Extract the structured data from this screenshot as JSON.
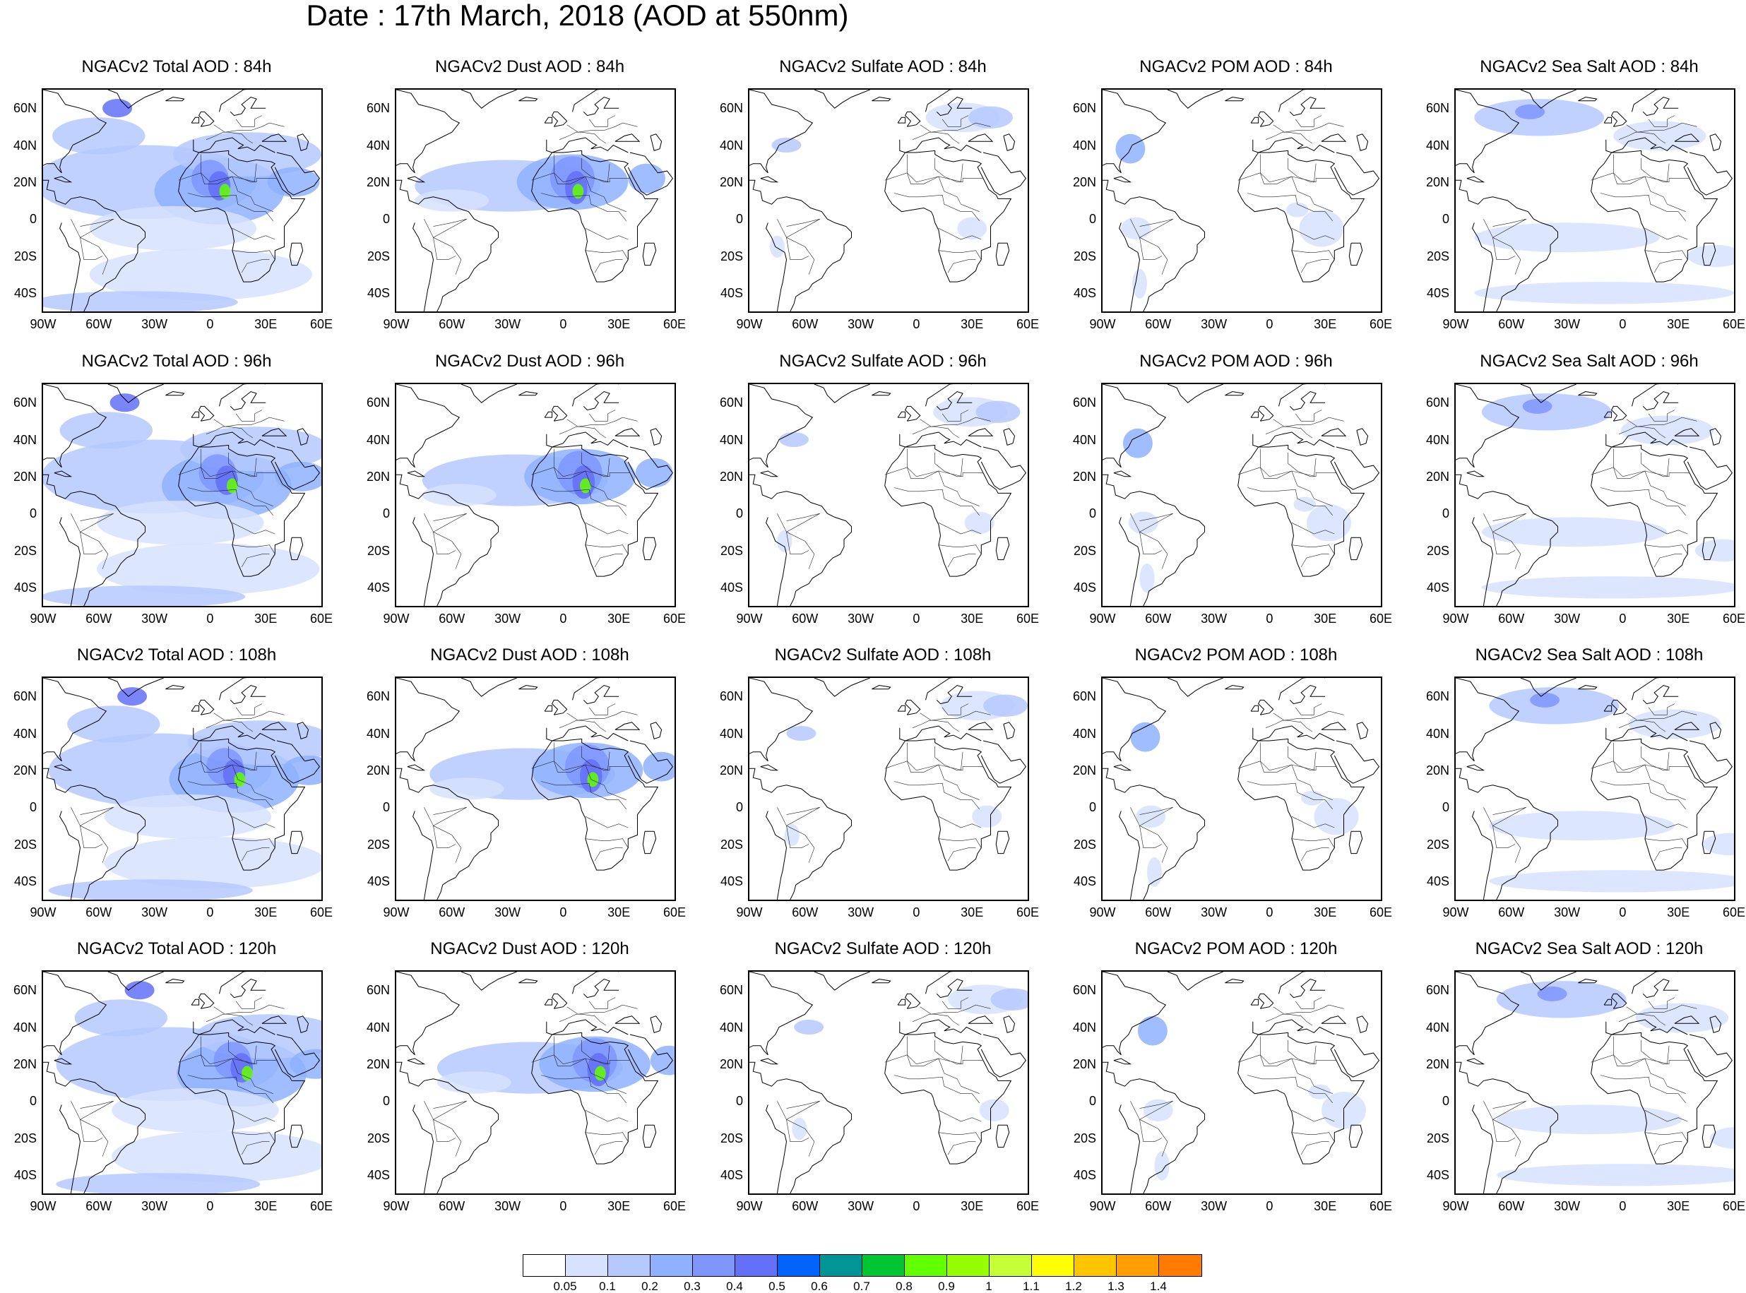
{
  "title": "Date : 17th March, 2018 (AOD at 550nm)",
  "panels": [
    [
      "NGACv2 Total AOD : 84h",
      "NGACv2 Dust AOD : 84h",
      "NGACv2 Sulfate AOD : 84h",
      "NGACv2 POM AOD : 84h",
      "NGACv2 Sea Salt AOD : 84h"
    ],
    [
      "NGACv2 Total AOD : 96h",
      "NGACv2 Dust AOD : 96h",
      "NGACv2 Sulfate AOD : 96h",
      "NGACv2 POM AOD : 96h",
      "NGACv2 Sea Salt AOD : 96h"
    ],
    [
      "NGACv2 Total AOD : 108h",
      "NGACv2 Dust AOD : 108h",
      "NGACv2 Sulfate AOD : 108h",
      "NGACv2 POM AOD : 108h",
      "NGACv2 Sea Salt AOD : 108h"
    ],
    [
      "NGACv2 Total AOD : 120h",
      "NGACv2 Dust AOD : 120h",
      "NGACv2 Sulfate AOD : 120h",
      "NGACv2 POM AOD : 120h",
      "NGACv2 Sea Salt  AOD : 120h"
    ]
  ],
  "species": [
    "total",
    "dust",
    "sulfate",
    "pom",
    "seasalt"
  ],
  "lat_ticks": [
    "60N",
    "40N",
    "20N",
    "0",
    "20S",
    "40S"
  ],
  "lon_ticks": [
    "90W",
    "60W",
    "30W",
    "0",
    "30E",
    "60E"
  ],
  "map_extent": {
    "lon": [
      -90,
      60
    ],
    "lat": [
      -50,
      70
    ]
  },
  "colorbar": {
    "levels": [
      "0.05",
      "0.1",
      "0.2",
      "0.3",
      "0.4",
      "0.5",
      "0.6",
      "0.7",
      "0.8",
      "0.9",
      "1",
      "1.1",
      "1.2",
      "1.3",
      "1.4"
    ],
    "colors": [
      "#ffffff",
      "#d6e2ff",
      "#b5c9ff",
      "#8eb2ff",
      "#7f96ff",
      "#6370f8",
      "#0063ff",
      "#009696",
      "#00c633",
      "#63ff00",
      "#96ff00",
      "#c6ff33",
      "#ffff00",
      "#ffc600",
      "#ffa000",
      "#ff7c00",
      "#ff1900"
    ]
  }
}
